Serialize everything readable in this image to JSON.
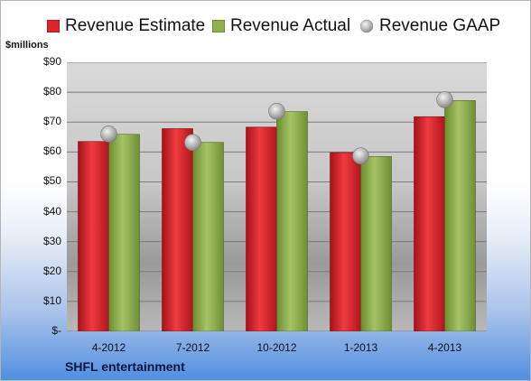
{
  "legend": {
    "estimate": "Revenue Estimate",
    "actual": "Revenue Actual",
    "gaap": "Revenue GAAP"
  },
  "unit_label": "$millions",
  "brand": "SHFL entertainment",
  "colors": {
    "estimate": "#d9262c",
    "actual": "#8fb04b",
    "gaap": "#c0c0c0"
  },
  "chart_data": {
    "type": "bar",
    "categories": [
      "4-2012",
      "7-2012",
      "10-2012",
      "1-2013",
      "4-2013"
    ],
    "series": [
      {
        "name": "Revenue Estimate",
        "kind": "bar",
        "values": [
          63.5,
          67.8,
          68.3,
          59.8,
          71.8
        ]
      },
      {
        "name": "Revenue Actual",
        "kind": "bar",
        "values": [
          65.9,
          63.2,
          73.5,
          58.5,
          77.2
        ]
      },
      {
        "name": "Revenue GAAP",
        "kind": "marker",
        "values": [
          66.0,
          63.2,
          73.6,
          58.7,
          77.5
        ]
      }
    ],
    "y_ticks": [
      "$-",
      "$10",
      "$20",
      "$30",
      "$40",
      "$50",
      "$60",
      "$70",
      "$80",
      "$90"
    ],
    "ylim": [
      0,
      90
    ],
    "grid": true,
    "legend_position": "top"
  }
}
